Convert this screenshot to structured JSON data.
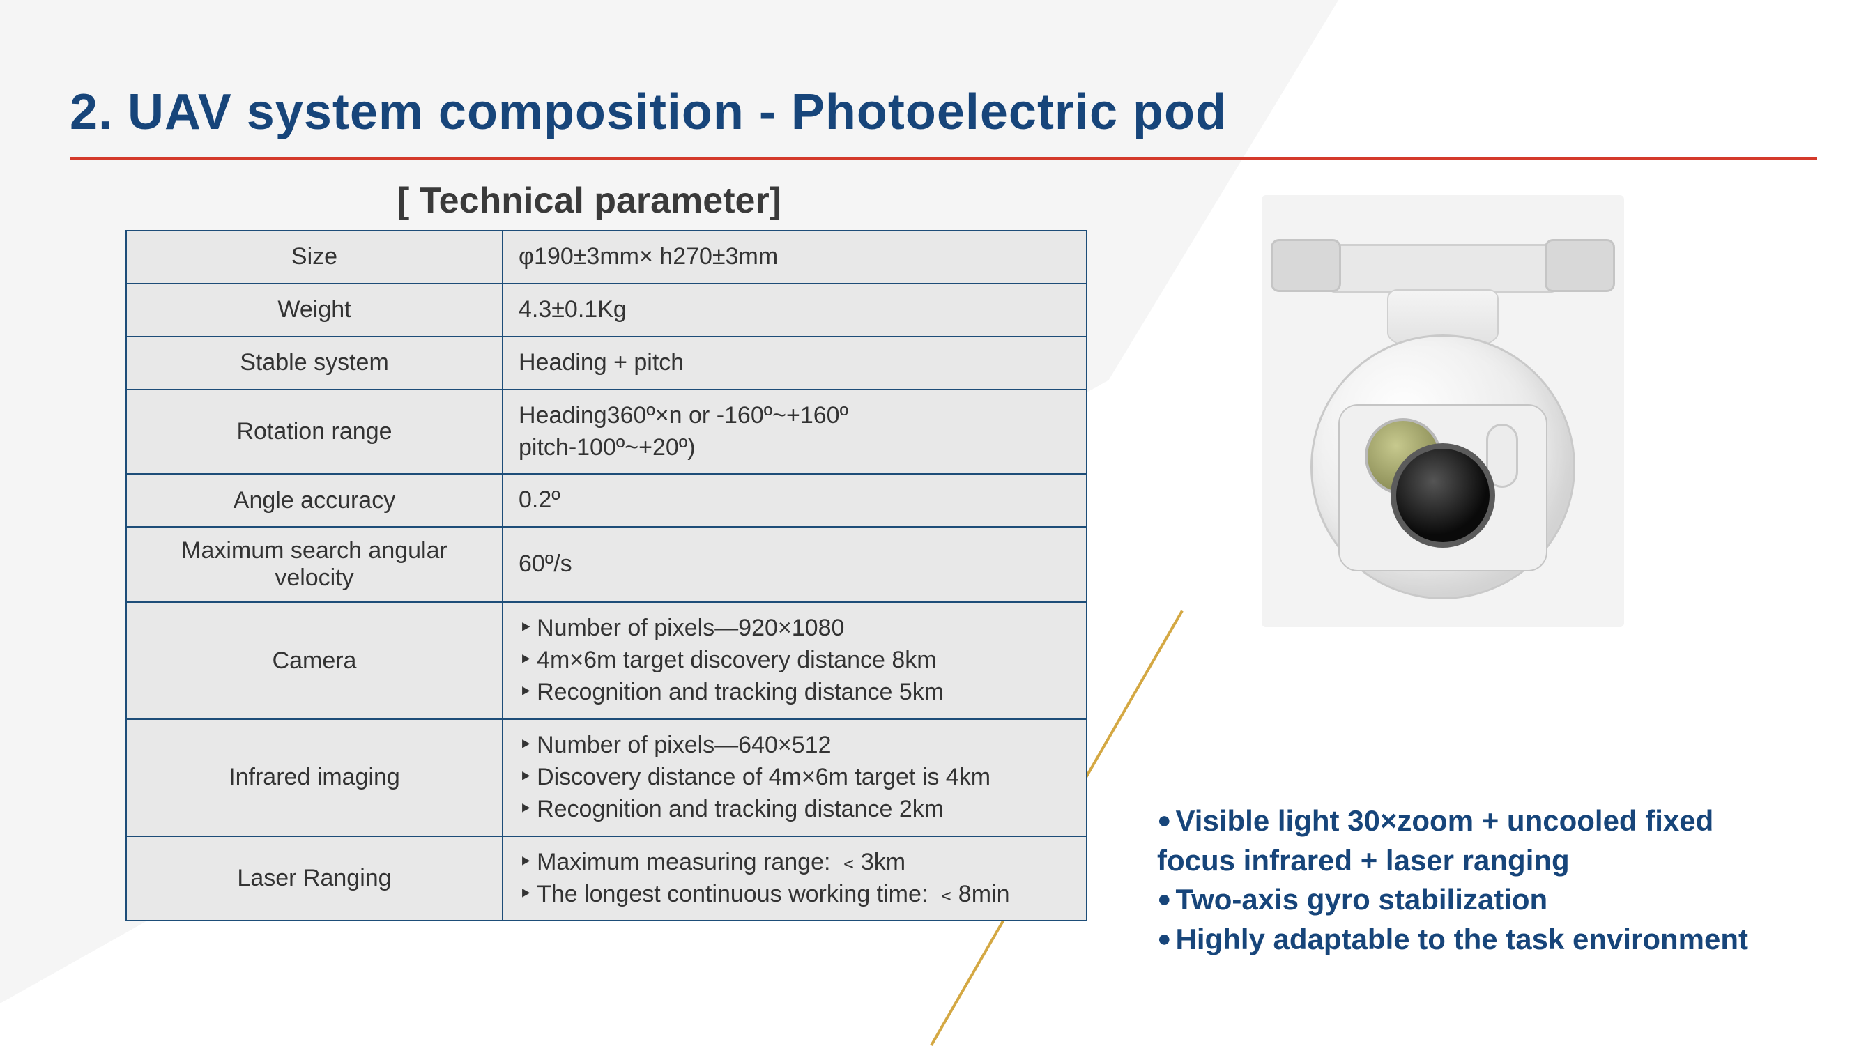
{
  "title": "2. UAV system composition - Photoelectric pod",
  "subhead": "[ Technical parameter]",
  "colors": {
    "title": "#17457a",
    "rule": "#d43a2b",
    "table_border": "#1d4d78",
    "table_bg": "#e8e8e8",
    "features": "#17457a",
    "accent_line": "#d4a843"
  },
  "table": {
    "rows": [
      {
        "label": "Size",
        "value": [
          "φ190±3mm× h270±3mm"
        ],
        "bulleted": false
      },
      {
        "label": "Weight",
        "value": [
          "4.3±0.1Kg"
        ],
        "bulleted": false
      },
      {
        "label": "Stable system",
        "value": [
          "Heading + pitch"
        ],
        "bulleted": false
      },
      {
        "label": "Rotation range",
        "value": [
          "Heading360º×n or -160º~+160º",
          "pitch-100º~+20º)"
        ],
        "bulleted": false
      },
      {
        "label": "Angle accuracy",
        "value": [
          "0.2º"
        ],
        "bulleted": false
      },
      {
        "label": "Maximum search angular velocity",
        "value": [
          "60º/s"
        ],
        "bulleted": false
      },
      {
        "label": "Camera",
        "value": [
          "Number of pixels—920×1080",
          "4m×6m target discovery distance 8km",
          "Recognition and tracking distance 5km"
        ],
        "bulleted": true
      },
      {
        "label": "Infrared imaging",
        "value": [
          "Number of pixels—640×512",
          "Discovery distance of 4m×6m target is 4km",
          "Recognition and tracking distance 2km"
        ],
        "bulleted": true
      },
      {
        "label": "Laser Ranging",
        "value": [
          "Maximum measuring range: ﹤3km",
          "The longest continuous working time: ﹤8min"
        ],
        "bulleted": true
      }
    ]
  },
  "features": [
    "Visible light 30×zoom + uncooled fixed focus infrared + laser ranging",
    "Two-axis gyro stabilization",
    "Highly adaptable to the task environment"
  ]
}
